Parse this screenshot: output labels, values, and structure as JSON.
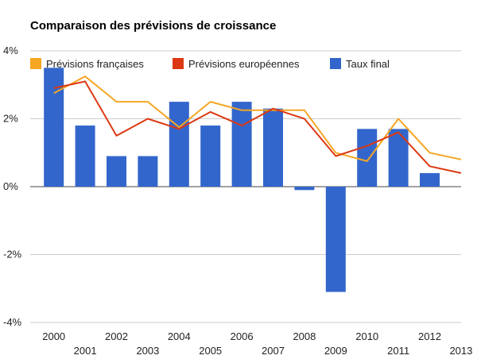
{
  "chart_data": {
    "type": "bar",
    "title": "Comparaison des prévisions de croissance",
    "xlabel": "",
    "ylabel": "",
    "categories": [
      "2000",
      "2001",
      "2002",
      "2003",
      "2004",
      "2005",
      "2006",
      "2007",
      "2008",
      "2009",
      "2010",
      "2011",
      "2012",
      "2013"
    ],
    "ylim": [
      -4,
      4
    ],
    "yticks": [
      4,
      2,
      0,
      -2,
      -4
    ],
    "ytick_labels": [
      "4%",
      "2%",
      "0%",
      "-2%",
      "-4%"
    ],
    "grid": true,
    "legend_position": "top",
    "series": [
      {
        "name": "Prévisions françaises",
        "type": "line",
        "color": "#f5a623",
        "values": [
          2.75,
          3.25,
          2.5,
          2.5,
          1.75,
          2.5,
          2.25,
          2.25,
          2.25,
          1.0,
          0.75,
          2.0,
          1.0,
          0.8
        ]
      },
      {
        "name": "Prévisions européennes",
        "type": "line",
        "color": "#dc3912",
        "values": [
          2.9,
          3.1,
          1.5,
          2.0,
          1.7,
          2.2,
          1.8,
          2.3,
          2.0,
          0.9,
          1.2,
          1.6,
          0.6,
          0.4
        ]
      },
      {
        "name": "Taux final",
        "type": "bar",
        "color": "#3366cc",
        "values": [
          3.5,
          1.8,
          0.9,
          0.9,
          2.5,
          1.8,
          2.5,
          2.3,
          -0.1,
          -3.1,
          1.7,
          1.7,
          0.4,
          null
        ]
      }
    ]
  }
}
